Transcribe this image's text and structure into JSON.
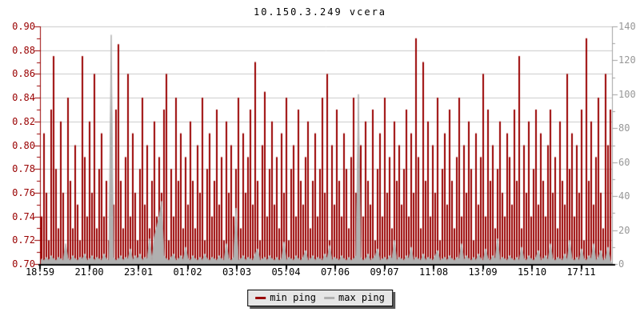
{
  "title": "10.150.3.249 vcera",
  "legend": {
    "items": [
      {
        "label": "min ping",
        "color": "#990000"
      },
      {
        "label": "max ping",
        "color": "#b0b0b0"
      }
    ]
  },
  "colors": {
    "background": "#ffffff",
    "grid": "#c8c8c8",
    "frame_bottom": "#000000",
    "left_axis": "#990000",
    "right_axis": "#a0a0a0",
    "title_text": "#000000",
    "x_tick_text": "#000000"
  },
  "chart_data": {
    "type": "bar",
    "title": "10.150.3.249 vcera",
    "grid": true,
    "legend_position": "bottom-center",
    "left_axis": {
      "min": 0.7,
      "max": 0.9,
      "tick_step": 0.02,
      "minor_step": 0.01,
      "color": "#990000",
      "ticks": [
        "0.90",
        "0.88",
        "0.86",
        "0.84",
        "0.82",
        "0.80",
        "0.78",
        "0.76",
        "0.74",
        "0.72",
        "0.70"
      ]
    },
    "right_axis": {
      "min": 0,
      "max": 140,
      "tick_step": 20,
      "minor_step": 10,
      "color": "#a0a0a0",
      "ticks": [
        "140",
        "120",
        "100",
        "80",
        "60",
        "40",
        "20",
        "0"
      ]
    },
    "x_ticks": [
      "18:59",
      "21:00",
      "23:01",
      "01:02",
      "03:03",
      "05:04",
      "07:06",
      "09:07",
      "11:08",
      "13:09",
      "15:10",
      "17:11"
    ],
    "series": [
      {
        "name": "min ping",
        "axis": "left",
        "style": "bars",
        "color": "#990000",
        "values": [
          0.74,
          0.81,
          0.76,
          0.72,
          0.83,
          0.875,
          0.78,
          0.73,
          0.82,
          0.76,
          0.71,
          0.84,
          0.77,
          0.73,
          0.8,
          0.75,
          0.72,
          0.875,
          0.79,
          0.74,
          0.82,
          0.76,
          0.86,
          0.73,
          0.78,
          0.81,
          0.74,
          0.77,
          0.72,
          0.8,
          0.75,
          0.83,
          0.885,
          0.77,
          0.73,
          0.79,
          0.86,
          0.74,
          0.81,
          0.76,
          0.72,
          0.78,
          0.84,
          0.75,
          0.8,
          0.73,
          0.77,
          0.82,
          0.74,
          0.79,
          0.76,
          0.83,
          0.86,
          0.72,
          0.78,
          0.74,
          0.84,
          0.77,
          0.81,
          0.73,
          0.79,
          0.75,
          0.82,
          0.77,
          0.73,
          0.8,
          0.76,
          0.84,
          0.72,
          0.78,
          0.81,
          0.74,
          0.77,
          0.83,
          0.75,
          0.79,
          0.72,
          0.82,
          0.76,
          0.8,
          0.74,
          0.78,
          0.84,
          0.73,
          0.81,
          0.76,
          0.79,
          0.83,
          0.75,
          0.87,
          0.77,
          0.72,
          0.8,
          0.845,
          0.74,
          0.78,
          0.82,
          0.75,
          0.79,
          0.73,
          0.81,
          0.76,
          0.84,
          0.72,
          0.78,
          0.8,
          0.74,
          0.83,
          0.77,
          0.75,
          0.79,
          0.82,
          0.73,
          0.77,
          0.81,
          0.74,
          0.78,
          0.84,
          0.76,
          0.86,
          0.72,
          0.8,
          0.75,
          0.83,
          0.77,
          0.74,
          0.81,
          0.78,
          0.73,
          0.79,
          0.84,
          0.76,
          0.71,
          0.8,
          0.74,
          0.82,
          0.77,
          0.75,
          0.83,
          0.72,
          0.78,
          0.81,
          0.74,
          0.84,
          0.76,
          0.79,
          0.73,
          0.82,
          0.77,
          0.8,
          0.75,
          0.78,
          0.83,
          0.74,
          0.81,
          0.76,
          0.89,
          0.79,
          0.73,
          0.87,
          0.77,
          0.82,
          0.74,
          0.8,
          0.76,
          0.84,
          0.72,
          0.78,
          0.81,
          0.75,
          0.83,
          0.77,
          0.73,
          0.79,
          0.84,
          0.74,
          0.8,
          0.76,
          0.82,
          0.78,
          0.72,
          0.81,
          0.75,
          0.79,
          0.86,
          0.74,
          0.83,
          0.77,
          0.8,
          0.73,
          0.78,
          0.82,
          0.76,
          0.74,
          0.81,
          0.79,
          0.75,
          0.83,
          0.77,
          0.875,
          0.73,
          0.8,
          0.76,
          0.82,
          0.74,
          0.78,
          0.83,
          0.75,
          0.81,
          0.77,
          0.74,
          0.8,
          0.83,
          0.76,
          0.79,
          0.73,
          0.82,
          0.77,
          0.75,
          0.86,
          0.78,
          0.81,
          0.74,
          0.8,
          0.76,
          0.83,
          0.72,
          0.89,
          0.77,
          0.82,
          0.75,
          0.79,
          0.84,
          0.76,
          0.73,
          0.86,
          0.8,
          0.83
        ]
      },
      {
        "name": "max ping",
        "axis": "right",
        "style": "area",
        "color": "#b0b0b0",
        "values": [
          3,
          2,
          4,
          2,
          5,
          3,
          2,
          4,
          3,
          2,
          12,
          3,
          2,
          5,
          3,
          2,
          4,
          3,
          6,
          2,
          3,
          5,
          2,
          4,
          3,
          2,
          6,
          3,
          2,
          135,
          4,
          2,
          3,
          5,
          2,
          4,
          3,
          9,
          2,
          5,
          3,
          6,
          2,
          4,
          3,
          15,
          2,
          16,
          22,
          28,
          37,
          5,
          3,
          2,
          4,
          6,
          2,
          3,
          5,
          2,
          10,
          3,
          2,
          5,
          3,
          2,
          4,
          2,
          6,
          3,
          2,
          4,
          3,
          2,
          5,
          3,
          2,
          12,
          3,
          2,
          4,
          33,
          2,
          3,
          5,
          2,
          4,
          3,
          2,
          6,
          9,
          2,
          3,
          4,
          2,
          5,
          3,
          2,
          4,
          2,
          3,
          13,
          2,
          4,
          3,
          2,
          5,
          3,
          2,
          4,
          8,
          2,
          3,
          5,
          2,
          4,
          3,
          2,
          6,
          3,
          11,
          2,
          4,
          3,
          2,
          5,
          3,
          2,
          4,
          2,
          3,
          5,
          100,
          4,
          2,
          3,
          6,
          2,
          3,
          5,
          9,
          2,
          3,
          4,
          2,
          5,
          3,
          14,
          2,
          4,
          3,
          2,
          5,
          3,
          10,
          2,
          4,
          3,
          2,
          6,
          2,
          4,
          3,
          2,
          5,
          8,
          2,
          3,
          4,
          2,
          5,
          3,
          2,
          4,
          3,
          12,
          2,
          5,
          3,
          2,
          4,
          2,
          6,
          3,
          2,
          9,
          3,
          2,
          5,
          3,
          15,
          2,
          4,
          3,
          2,
          5,
          3,
          2,
          4,
          2,
          10,
          3,
          2,
          5,
          3,
          2,
          4,
          8,
          2,
          3,
          5,
          2,
          12,
          3,
          2,
          4,
          3,
          2,
          6,
          2,
          14,
          3,
          2,
          4,
          2,
          9,
          3,
          2,
          5,
          3,
          12,
          2,
          4,
          8,
          2,
          3,
          10,
          2
        ]
      }
    ]
  }
}
